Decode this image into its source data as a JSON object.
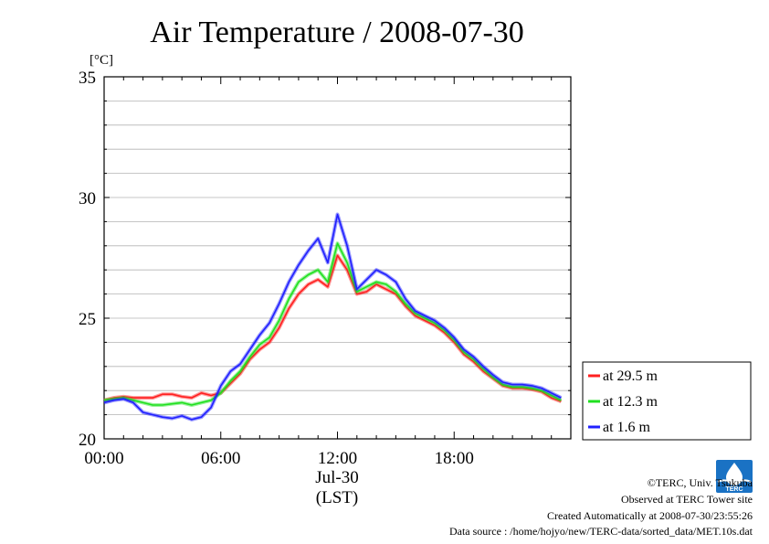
{
  "chart_data": {
    "type": "line",
    "title": "Air Temperature / 2008-07-30",
    "ylabel": "[°C]",
    "xlabel": "(LST)",
    "date_label": "Jul-30",
    "xlim": [
      0,
      24
    ],
    "ylim": [
      20,
      35
    ],
    "x_ticks": [
      {
        "value": 0,
        "label": "00:00"
      },
      {
        "value": 6,
        "label": "06:00"
      },
      {
        "value": 12,
        "label": "12:00"
      },
      {
        "value": 18,
        "label": "18:00"
      }
    ],
    "y_ticks": [
      {
        "value": 20,
        "label": "20"
      },
      {
        "value": 25,
        "label": "25"
      },
      {
        "value": 30,
        "label": "30"
      },
      {
        "value": 35,
        "label": "35"
      }
    ],
    "y_minor_step": 1,
    "grid": true,
    "legend_position": "right-outside",
    "x": [
      0,
      0.5,
      1,
      1.5,
      2,
      2.5,
      3,
      3.5,
      4,
      4.5,
      5,
      5.5,
      6,
      6.5,
      7,
      7.5,
      8,
      8.5,
      9,
      9.5,
      10,
      10.5,
      11,
      11.5,
      12,
      12.5,
      13,
      13.5,
      14,
      14.5,
      15,
      15.5,
      16,
      16.5,
      17,
      17.5,
      18,
      18.5,
      19,
      19.5,
      20,
      20.5,
      21,
      21.5,
      22,
      22.5,
      23,
      23.5
    ],
    "series": [
      {
        "name": "at 29.5 m",
        "color": "#ff2020",
        "values": [
          21.6,
          21.7,
          21.75,
          21.7,
          21.7,
          21.7,
          21.85,
          21.85,
          21.75,
          21.7,
          21.9,
          21.8,
          21.9,
          22.3,
          22.7,
          23.3,
          23.7,
          24.0,
          24.6,
          25.4,
          26.0,
          26.4,
          26.6,
          26.3,
          27.6,
          27.0,
          26.0,
          26.1,
          26.4,
          26.2,
          26.0,
          25.5,
          25.1,
          24.9,
          24.7,
          24.4,
          24.0,
          23.5,
          23.2,
          22.8,
          22.5,
          22.2,
          22.1,
          22.1,
          22.05,
          21.95,
          21.7,
          21.55
        ]
      },
      {
        "name": "at 12.3 m",
        "color": "#20e020",
        "values": [
          21.6,
          21.65,
          21.7,
          21.6,
          21.5,
          21.4,
          21.4,
          21.45,
          21.5,
          21.4,
          21.5,
          21.6,
          21.9,
          22.4,
          22.8,
          23.4,
          23.9,
          24.2,
          24.9,
          25.8,
          26.5,
          26.8,
          27.0,
          26.5,
          28.1,
          27.3,
          26.1,
          26.3,
          26.5,
          26.4,
          26.1,
          25.6,
          25.2,
          25.0,
          24.8,
          24.5,
          24.1,
          23.6,
          23.3,
          22.9,
          22.55,
          22.25,
          22.15,
          22.15,
          22.1,
          22.0,
          21.8,
          21.6
        ]
      },
      {
        "name": "at 1.6 m",
        "color": "#2020ff",
        "values": [
          21.5,
          21.6,
          21.65,
          21.5,
          21.1,
          21.0,
          20.9,
          20.85,
          20.95,
          20.8,
          20.9,
          21.3,
          22.2,
          22.8,
          23.1,
          23.7,
          24.3,
          24.8,
          25.6,
          26.5,
          27.2,
          27.8,
          28.3,
          27.3,
          29.3,
          28.0,
          26.2,
          26.6,
          27.0,
          26.8,
          26.5,
          25.8,
          25.3,
          25.1,
          24.9,
          24.6,
          24.2,
          23.7,
          23.4,
          23.0,
          22.65,
          22.35,
          22.25,
          22.25,
          22.2,
          22.1,
          21.9,
          21.7
        ]
      }
    ]
  },
  "credits": {
    "copyright": "©TERC, Univ. Tsukuba",
    "observed": "Observed at TERC Tower site",
    "created": "Created Automatically at 2008-07-30/23:55:26",
    "source": "Data source : /home/hojyo/new/TERC-data/sorted_data/MET.10s.dat"
  },
  "logo": {
    "name": "terc-logo",
    "text": "TERC",
    "color": "#1a72c4"
  }
}
